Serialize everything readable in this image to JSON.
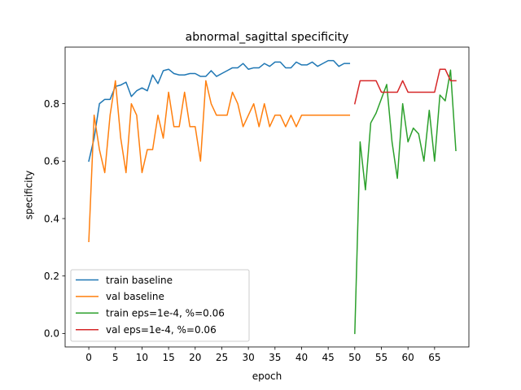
{
  "chart_data": {
    "type": "line",
    "title": "abnormal_sagittal specificity",
    "xlabel": "epoch",
    "ylabel": "specificity",
    "xlim": [
      -4.45,
      71.45
    ],
    "ylim": [
      -0.047,
      0.997
    ],
    "xticks": [
      0,
      5,
      10,
      15,
      20,
      25,
      30,
      35,
      40,
      45,
      50,
      55,
      60,
      65
    ],
    "yticks": [
      0.0,
      0.2,
      0.4,
      0.6,
      0.8
    ],
    "ytick_labels": [
      "0.0",
      "0.2",
      "0.4",
      "0.6",
      "0.8"
    ],
    "grid": false,
    "legend_position": "lower-left",
    "series": [
      {
        "name": "train baseline",
        "color": "#1f77b4",
        "x": [
          0,
          1,
          2,
          3,
          4,
          5,
          6,
          7,
          8,
          9,
          10,
          11,
          12,
          13,
          14,
          15,
          16,
          17,
          18,
          19,
          20,
          21,
          22,
          23,
          24,
          25,
          26,
          27,
          28,
          29,
          30,
          31,
          32,
          33,
          34,
          35,
          36,
          37,
          38,
          39,
          40,
          41,
          42,
          43,
          44,
          45,
          46,
          47,
          48,
          49
        ],
        "y": [
          0.6,
          0.68,
          0.8,
          0.815,
          0.815,
          0.86,
          0.865,
          0.875,
          0.825,
          0.845,
          0.855,
          0.845,
          0.9,
          0.87,
          0.915,
          0.92,
          0.905,
          0.9,
          0.9,
          0.905,
          0.905,
          0.895,
          0.895,
          0.915,
          0.895,
          0.905,
          0.915,
          0.925,
          0.925,
          0.94,
          0.92,
          0.925,
          0.925,
          0.94,
          0.93,
          0.945,
          0.945,
          0.925,
          0.925,
          0.945,
          0.935,
          0.935,
          0.945,
          0.93,
          0.94,
          0.95,
          0.95,
          0.93,
          0.94,
          0.94
        ]
      },
      {
        "name": "val baseline",
        "color": "#ff7f0e",
        "x": [
          0,
          1,
          2,
          3,
          4,
          5,
          6,
          7,
          8,
          9,
          10,
          11,
          12,
          13,
          14,
          15,
          16,
          17,
          18,
          19,
          20,
          21,
          22,
          23,
          24,
          25,
          26,
          27,
          28,
          29,
          30,
          31,
          32,
          33,
          34,
          35,
          36,
          37,
          38,
          39,
          40,
          41,
          42,
          43,
          44,
          45,
          46,
          47,
          48,
          49
        ],
        "y": [
          0.32,
          0.76,
          0.64,
          0.56,
          0.76,
          0.88,
          0.68,
          0.56,
          0.8,
          0.76,
          0.56,
          0.64,
          0.64,
          0.76,
          0.68,
          0.84,
          0.72,
          0.72,
          0.84,
          0.72,
          0.72,
          0.6,
          0.88,
          0.8,
          0.76,
          0.76,
          0.76,
          0.84,
          0.8,
          0.72,
          0.76,
          0.8,
          0.72,
          0.8,
          0.72,
          0.76,
          0.76,
          0.72,
          0.76,
          0.72,
          0.76,
          0.76,
          0.76,
          0.76,
          0.76,
          0.76,
          0.76,
          0.76,
          0.76,
          0.76
        ]
      },
      {
        "name": "train eps=1e-4, %=0.06",
        "color": "#2ca02c",
        "x": [
          50,
          51,
          52,
          53,
          54,
          55,
          56,
          57,
          58,
          59,
          60,
          61,
          62,
          63,
          64,
          65,
          66,
          67,
          68,
          69
        ],
        "y": [
          0.0,
          0.667,
          0.5,
          0.733,
          0.767,
          0.817,
          0.867,
          0.667,
          0.54,
          0.8,
          0.667,
          0.715,
          0.695,
          0.6,
          0.777,
          0.6,
          0.83,
          0.81,
          0.917,
          0.637
        ]
      },
      {
        "name": "val eps=1e-4, %=0.06",
        "color": "#d62728",
        "x": [
          50,
          51,
          52,
          53,
          54,
          55,
          56,
          57,
          58,
          59,
          60,
          61,
          62,
          63,
          64,
          65,
          66,
          67,
          68,
          69
        ],
        "y": [
          0.8,
          0.88,
          0.88,
          0.88,
          0.88,
          0.84,
          0.84,
          0.84,
          0.84,
          0.88,
          0.84,
          0.84,
          0.84,
          0.84,
          0.84,
          0.84,
          0.92,
          0.92,
          0.88,
          0.88
        ]
      }
    ]
  }
}
